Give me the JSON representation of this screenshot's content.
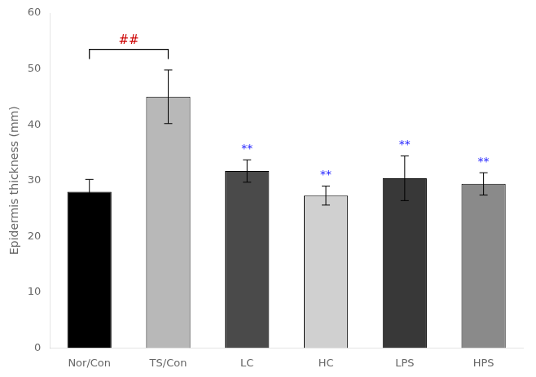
{
  "chart_data": {
    "type": "bar",
    "categories": [
      "Nor/Con",
      "TS/Con",
      "LC",
      "HC",
      "LPS",
      "HPS"
    ],
    "values": [
      28.0,
      45.0,
      31.7,
      27.3,
      30.4,
      29.4
    ],
    "errors": [
      2.2,
      4.8,
      2.0,
      1.7,
      4.0,
      2.0
    ],
    "colors": [
      "#000000",
      "#b8b8b8",
      "#4a4a4a",
      "#d0d0d0",
      "#383838",
      "#8a8a8a"
    ],
    "ylabel": "Epidermis thickness (mm)",
    "ylim": [
      0,
      60
    ],
    "yticks": [
      0,
      10,
      20,
      30,
      40,
      50,
      60
    ],
    "grid": false,
    "annotations": [
      {
        "text": "**",
        "category": "LC",
        "color": "#1a1aff"
      },
      {
        "text": "**",
        "category": "HC",
        "color": "#1a1aff"
      },
      {
        "text": "**",
        "category": "LPS",
        "color": "#1a1aff"
      },
      {
        "text": "**",
        "category": "HPS",
        "color": "#1a1aff"
      }
    ],
    "brackets": [
      {
        "from": "Nor/Con",
        "to": "TS/Con",
        "y": 53.5,
        "text": "##",
        "color": "#cc0000"
      }
    ]
  }
}
